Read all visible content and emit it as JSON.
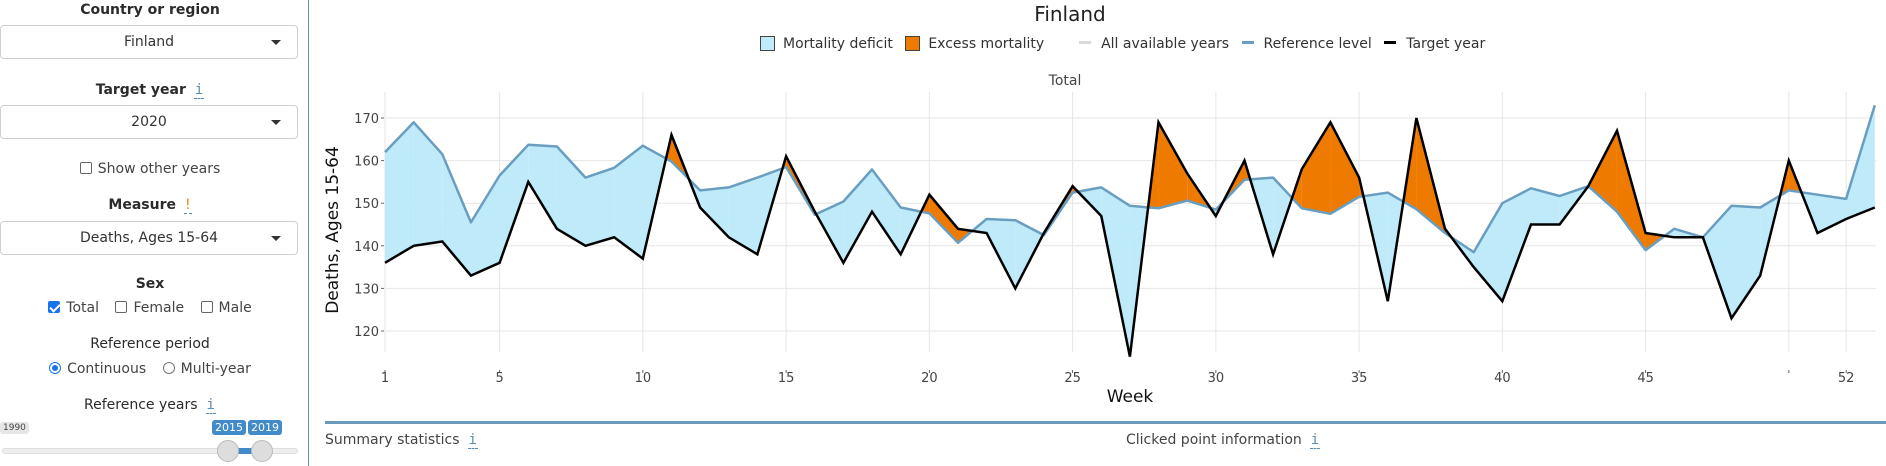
{
  "sidebar": {
    "country_label": "Country or region",
    "country_value": "Finland",
    "target_year_label": "Target year",
    "target_year_value": "2020",
    "info_glyph": "i",
    "warn_glyph": "!",
    "show_other_years_label": "Show other years",
    "show_other_years_checked": false,
    "measure_label": "Measure",
    "measure_value": "Deaths, Ages 15-64",
    "sex_label": "Sex",
    "sex_options": [
      {
        "label": "Total",
        "checked": true
      },
      {
        "label": "Female",
        "checked": false
      },
      {
        "label": "Male",
        "checked": false
      }
    ],
    "reference_period_label": "Reference period",
    "reference_period_options": [
      {
        "label": "Continuous",
        "selected": true
      },
      {
        "label": "Multi-year",
        "selected": false
      }
    ],
    "reference_years_label": "Reference years",
    "slider": {
      "min": 1990,
      "max": 2020,
      "from": 2015,
      "to": 2019,
      "min_label": "1990",
      "from_label": "2015",
      "to_label": "2019"
    }
  },
  "footer": {
    "summary_label": "Summary statistics",
    "clicked_label": "Clicked point information"
  },
  "colors": {
    "deficit_fill": "#bfeafa",
    "excess_fill": "#ef7a00",
    "reference_line": "#6a9ec0",
    "target_line": "#000000",
    "all_years_line": "#d9d9d9",
    "accent": "#428bca"
  },
  "chart_data": {
    "type": "area",
    "title": "Finland",
    "facet_label": "Total",
    "xlabel": "Week",
    "ylabel": "Deaths, Ages 15-64",
    "xlim": [
      1,
      53
    ],
    "ylim": [
      113,
      175
    ],
    "x_ticks": [
      1,
      5,
      10,
      15,
      20,
      25,
      30,
      35,
      40,
      45,
      50,
      52
    ],
    "x_tick_labels": [
      "1",
      "5",
      "10",
      "15",
      "20",
      "25",
      "30",
      "35",
      "40",
      "45",
      "",
      "52"
    ],
    "y_ticks": [
      120,
      130,
      140,
      150,
      160,
      170
    ],
    "grid": true,
    "legend_position": "top",
    "legend": [
      {
        "label": "Mortality deficit",
        "kind": "fill",
        "color": "#bfeafa"
      },
      {
        "label": "Excess mortality",
        "kind": "fill",
        "color": "#ef7a00"
      },
      {
        "label": "All available years",
        "kind": "line",
        "color": "#d9d9d9"
      },
      {
        "label": "Reference level",
        "kind": "line",
        "color": "#6a9ec0"
      },
      {
        "label": "Target year",
        "kind": "line",
        "color": "#000000"
      }
    ],
    "x": [
      1,
      2,
      3,
      4,
      5,
      6,
      7,
      8,
      9,
      10,
      11,
      12,
      13,
      14,
      15,
      16,
      17,
      18,
      19,
      20,
      21,
      22,
      23,
      24,
      25,
      26,
      27,
      28,
      29,
      30,
      31,
      32,
      33,
      34,
      35,
      36,
      37,
      38,
      39,
      40,
      41,
      42,
      43,
      44,
      45,
      46,
      47,
      48,
      49,
      50,
      51,
      52,
      53
    ],
    "series": [
      {
        "name": "Reference level",
        "values": [
          162,
          169,
          161.5,
          145.5,
          156.5,
          163.7,
          163.3,
          156,
          158.3,
          163.5,
          159.8,
          153,
          153.7,
          156,
          158.5,
          147.3,
          150.4,
          157.9,
          149,
          147.6,
          140.7,
          146.3,
          146,
          142.5,
          152.5,
          153.7,
          149.4,
          148.8,
          150.6,
          148.5,
          155.5,
          156,
          148.8,
          147.5,
          151.5,
          152.5,
          148.6,
          143,
          138.5,
          150,
          153.5,
          151.7,
          154,
          148,
          139,
          144,
          142,
          149.4,
          149,
          153,
          152,
          151,
          173
        ]
      },
      {
        "name": "Target year",
        "values": [
          136,
          140,
          141,
          133,
          136,
          155,
          144,
          140,
          142,
          137,
          166,
          149,
          142,
          138,
          161,
          148,
          136,
          148,
          138,
          152,
          144,
          143,
          130,
          143,
          154,
          147,
          114,
          169,
          157,
          147,
          160,
          138,
          158,
          169,
          156,
          127,
          170,
          144,
          135,
          127,
          145,
          145,
          154,
          167,
          143,
          142,
          142,
          123,
          133,
          160,
          143,
          146.3,
          149
        ]
      }
    ]
  }
}
